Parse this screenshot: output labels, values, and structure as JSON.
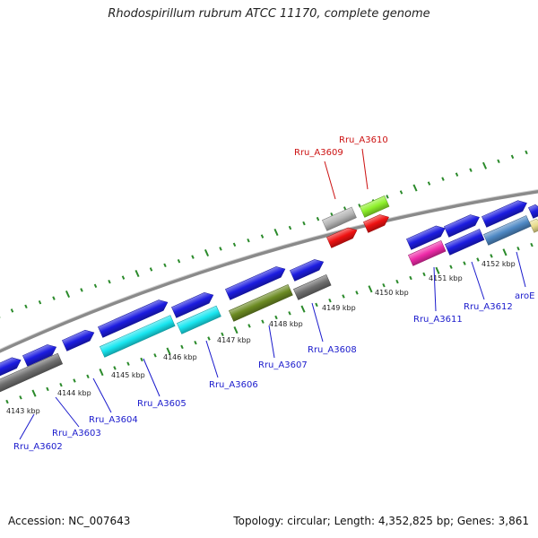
{
  "title": "Rhodospirillum rubrum ATCC 11170, complete genome",
  "footer": {
    "accession_label": "Accession:",
    "accession": "NC_007643",
    "topology_label": "Topology:",
    "topology": "circular",
    "length_label": "Length:",
    "length": "4,352,825 bp",
    "genes_label": "Genes:",
    "genes": "3,861"
  },
  "colors": {
    "blue": "#1c1ce0",
    "gray": "#6e6e6e",
    "lightgray": "#b5b5b5",
    "cyan": "#18e6f0",
    "olive": "#6b8a22",
    "red": "#ee1111",
    "lime": "#8ef02a",
    "magenta": "#ee2aa8",
    "steel": "#4e88c4",
    "khaki": "#e8dc8c",
    "tick": "#2a8a2a",
    "backbone": "#8a8a8a",
    "label_blue": "#1a1acc",
    "label_red": "#cc1111"
  },
  "kbp_ticks": [
    "4143 kbp",
    "4144 kbp",
    "4145 kbp",
    "4146 kbp",
    "4147 kbp",
    "4148 kbp",
    "4149 kbp",
    "4150 kbp",
    "4151 kbp",
    "4152 kbp"
  ],
  "gene_labels": [
    {
      "text": "Rru_A3602",
      "color": "label_blue"
    },
    {
      "text": "Rru_A3603",
      "color": "label_blue"
    },
    {
      "text": "Rru_A3604",
      "color": "label_blue"
    },
    {
      "text": "Rru_A3605",
      "color": "label_blue"
    },
    {
      "text": "Rru_A3606",
      "color": "label_blue"
    },
    {
      "text": "Rru_A3607",
      "color": "label_blue"
    },
    {
      "text": "Rru_A3608",
      "color": "label_blue"
    },
    {
      "text": "Rru_A3609",
      "color": "label_red"
    },
    {
      "text": "Rru_A3610",
      "color": "label_red"
    },
    {
      "text": "Rru_A3611",
      "color": "label_blue"
    },
    {
      "text": "Rru_A3612",
      "color": "label_blue"
    },
    {
      "text": "aroE",
      "color": "label_blue"
    }
  ],
  "features": [
    {
      "track": "cds_outer",
      "color": "blue",
      "arrow": true
    },
    {
      "track": "cds_outer",
      "color": "blue",
      "arrow": true
    },
    {
      "track": "cds_outer",
      "color": "blue",
      "arrow": true
    },
    {
      "track": "cds_outer",
      "color": "blue",
      "arrow": true
    },
    {
      "track": "cds_outer",
      "color": "blue",
      "arrow": true
    },
    {
      "track": "cds_outer",
      "color": "blue",
      "arrow": true
    },
    {
      "track": "cds_outer",
      "color": "blue",
      "arrow": true
    },
    {
      "track": "cds_outer",
      "color": "blue",
      "arrow": true
    },
    {
      "track": "cds_outer",
      "color": "blue",
      "arrow": true
    },
    {
      "track": "cds_outer",
      "color": "blue",
      "arrow": true
    },
    {
      "track": "cds_outer",
      "color": "blue",
      "arrow": true
    },
    {
      "track": "cds_outer",
      "color": "khaki",
      "arrow": true
    },
    {
      "track": "cog",
      "color": "gray",
      "arrow": false
    },
    {
      "track": "cog",
      "color": "cyan",
      "arrow": false
    },
    {
      "track": "cog",
      "color": "cyan",
      "arrow": false
    },
    {
      "track": "cog",
      "color": "olive",
      "arrow": false
    },
    {
      "track": "cog",
      "color": "gray",
      "arrow": false
    },
    {
      "track": "cog",
      "color": "magenta",
      "arrow": false
    },
    {
      "track": "cog",
      "color": "blue",
      "arrow": false
    },
    {
      "track": "cog",
      "color": "steel",
      "arrow": false
    },
    {
      "track": "upper",
      "color": "lightgray",
      "arrow": false
    },
    {
      "track": "upper",
      "color": "lime",
      "arrow": false
    },
    {
      "track": "upper",
      "color": "red",
      "arrow": true
    },
    {
      "track": "upper",
      "color": "red",
      "arrow": true
    }
  ]
}
